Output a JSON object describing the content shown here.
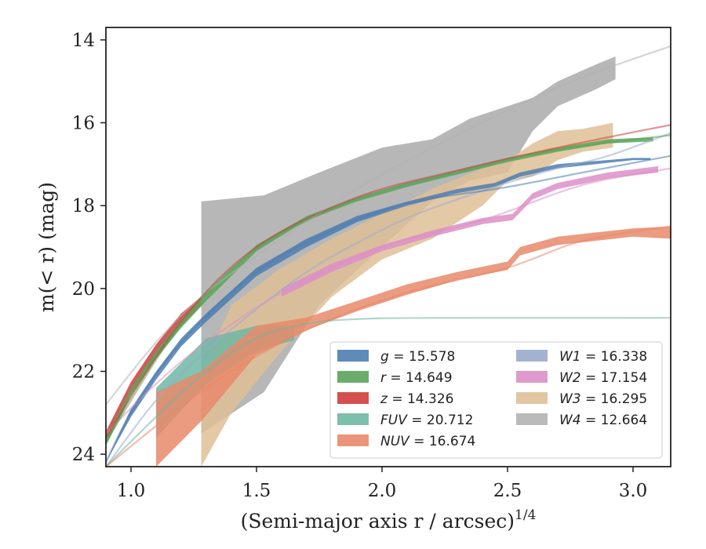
{
  "chart_data": {
    "type": "line",
    "xlabel": "(Semi-major axis r / arcsec)",
    "xlabel_sup": "1/4",
    "ylabel": "m(< r) (mag)",
    "xlim": [
      0.9,
      3.15
    ],
    "ylim": [
      24.3,
      13.7
    ],
    "y_inverted": true,
    "x_ticks": [
      1.0,
      1.5,
      2.0,
      2.5,
      3.0
    ],
    "x_tick_labels": [
      "1.0",
      "1.5",
      "2.0",
      "2.5",
      "3.0"
    ],
    "y_ticks": [
      14,
      16,
      18,
      20,
      22,
      24
    ],
    "y_tick_labels": [
      "14",
      "16",
      "18",
      "20",
      "22",
      "24"
    ],
    "grid": false,
    "legend_position": "lower-right",
    "series": [
      {
        "name": "g",
        "value": "15.578",
        "color": "#4c7eb0",
        "band": [
          [
            0.9,
            24.2,
            24.2
          ],
          [
            1.0,
            22.9,
            23.1
          ],
          [
            1.1,
            22.0,
            22.2
          ],
          [
            1.2,
            21.2,
            21.4
          ],
          [
            1.3,
            20.6,
            20.8
          ],
          [
            1.5,
            19.5,
            19.7
          ],
          [
            1.7,
            18.8,
            19.0
          ],
          [
            1.9,
            18.25,
            18.4
          ],
          [
            2.1,
            17.9,
            18.0
          ],
          [
            2.3,
            17.6,
            17.7
          ],
          [
            2.45,
            17.45,
            17.55
          ],
          [
            2.55,
            17.2,
            17.3
          ],
          [
            2.7,
            17.0,
            17.1
          ],
          [
            3.0,
            16.85,
            16.9
          ],
          [
            3.07,
            16.85,
            16.9
          ]
        ],
        "model": [
          [
            0.9,
            24.2
          ],
          [
            1.0,
            23.0
          ],
          [
            1.2,
            21.3
          ],
          [
            1.5,
            19.6
          ],
          [
            1.8,
            18.6
          ],
          [
            2.1,
            17.95
          ],
          [
            2.5,
            17.55
          ],
          [
            2.8,
            17.2
          ],
          [
            3.15,
            16.8
          ]
        ]
      },
      {
        "name": "r",
        "value": "14.649",
        "color": "#5aa45a",
        "band": [
          [
            0.9,
            23.8,
            23.6
          ],
          [
            1.0,
            22.6,
            22.4
          ],
          [
            1.1,
            21.7,
            21.5
          ],
          [
            1.2,
            20.95,
            20.75
          ],
          [
            1.3,
            20.3,
            20.1
          ],
          [
            1.5,
            19.1,
            18.95
          ],
          [
            1.7,
            18.35,
            18.25
          ],
          [
            1.9,
            17.9,
            17.8
          ],
          [
            2.1,
            17.55,
            17.45
          ],
          [
            2.3,
            17.25,
            17.15
          ],
          [
            2.5,
            16.95,
            16.85
          ],
          [
            2.7,
            16.7,
            16.6
          ],
          [
            2.9,
            16.5,
            16.4
          ],
          [
            3.08,
            16.45,
            16.35
          ]
        ],
        "model": [
          [
            0.9,
            23.7
          ],
          [
            1.2,
            20.85
          ],
          [
            1.5,
            19.05
          ],
          [
            1.9,
            17.85
          ],
          [
            2.3,
            17.2
          ],
          [
            2.7,
            16.65
          ],
          [
            3.15,
            16.3
          ]
        ]
      },
      {
        "name": "z",
        "value": "14.326",
        "color": "#d03c3c",
        "band": [
          [
            0.9,
            23.75,
            23.45
          ],
          [
            1.0,
            22.55,
            22.25
          ],
          [
            1.1,
            21.65,
            21.35
          ],
          [
            1.2,
            20.9,
            20.6
          ],
          [
            1.28,
            20.4,
            20.2
          ]
        ],
        "model": [
          [
            0.9,
            23.6
          ],
          [
            1.2,
            20.8
          ],
          [
            1.5,
            19.0
          ],
          [
            1.9,
            17.8
          ],
          [
            2.3,
            17.15
          ],
          [
            2.7,
            16.6
          ],
          [
            3.15,
            16.05
          ]
        ]
      },
      {
        "name": "FUV",
        "value": "20.712",
        "color": "#6fb7a3",
        "band": [
          [
            1.1,
            23.6,
            22.4
          ],
          [
            1.3,
            22.3,
            21.2
          ],
          [
            1.5,
            21.5,
            20.9
          ],
          [
            1.65,
            21.25,
            20.9
          ]
        ],
        "model": [
          [
            0.9,
            24.3
          ],
          [
            1.1,
            23.1
          ],
          [
            1.3,
            22.0
          ],
          [
            1.5,
            21.2
          ],
          [
            1.7,
            20.85
          ],
          [
            1.9,
            20.74
          ],
          [
            2.2,
            20.71
          ],
          [
            3.15,
            20.71
          ]
        ]
      },
      {
        "name": "NUV",
        "value": "16.674",
        "color": "#e8896a",
        "band": [
          [
            1.1,
            24.3,
            22.5
          ],
          [
            1.28,
            23.2,
            22.0
          ],
          [
            1.5,
            21.6,
            20.9
          ],
          [
            1.7,
            21.0,
            20.7
          ],
          [
            1.9,
            20.55,
            20.3
          ],
          [
            2.1,
            20.15,
            19.9
          ],
          [
            2.3,
            19.8,
            19.6
          ],
          [
            2.5,
            19.55,
            19.35
          ],
          [
            2.55,
            19.2,
            19.0
          ],
          [
            2.7,
            18.95,
            18.75
          ],
          [
            3.0,
            18.75,
            18.55
          ],
          [
            3.15,
            18.8,
            18.5
          ]
        ],
        "model": [
          [
            0.9,
            24.3
          ],
          [
            1.3,
            22.4
          ],
          [
            1.7,
            21.0
          ],
          [
            2.1,
            20.1
          ],
          [
            2.5,
            19.5
          ],
          [
            2.8,
            18.85
          ],
          [
            3.15,
            18.5
          ]
        ]
      },
      {
        "name": "W1",
        "value": "16.338",
        "color": "#9aaacd",
        "band": [],
        "model": [
          [
            0.9,
            24.3
          ],
          [
            1.1,
            22.7
          ],
          [
            1.3,
            21.5
          ],
          [
            1.5,
            20.5
          ],
          [
            1.7,
            19.6
          ],
          [
            1.9,
            18.9
          ],
          [
            2.1,
            18.3
          ],
          [
            2.3,
            17.85
          ],
          [
            2.5,
            17.45
          ],
          [
            2.7,
            17.1
          ],
          [
            2.9,
            16.8
          ],
          [
            3.15,
            16.25
          ]
        ]
      },
      {
        "name": "W2",
        "value": "17.154",
        "color": "#dc8fc8",
        "band": [
          [
            1.6,
            20.2,
            20.0
          ],
          [
            1.8,
            19.6,
            19.4
          ],
          [
            2.0,
            19.1,
            18.95
          ],
          [
            2.2,
            18.75,
            18.6
          ],
          [
            2.4,
            18.45,
            18.3
          ],
          [
            2.52,
            18.35,
            18.2
          ],
          [
            2.6,
            17.85,
            17.7
          ],
          [
            2.7,
            17.6,
            17.45
          ],
          [
            2.9,
            17.35,
            17.2
          ],
          [
            3.1,
            17.2,
            17.05
          ]
        ],
        "model": [
          [
            0.9,
            23.5
          ],
          [
            1.1,
            22.3
          ],
          [
            1.3,
            21.3
          ],
          [
            1.6,
            20.1
          ],
          [
            2.0,
            19.0
          ],
          [
            2.4,
            18.35
          ],
          [
            2.8,
            17.5
          ],
          [
            3.15,
            17.1
          ]
        ]
      },
      {
        "name": "W3",
        "value": "16.295",
        "color": "#dfc097",
        "band": [
          [
            1.28,
            24.3,
            22.0
          ],
          [
            1.4,
            23.0,
            20.4
          ],
          [
            1.6,
            21.5,
            19.5
          ],
          [
            1.8,
            20.2,
            18.8
          ],
          [
            2.0,
            19.3,
            18.2
          ],
          [
            2.2,
            18.8,
            17.6
          ],
          [
            2.4,
            18.0,
            17.1
          ],
          [
            2.5,
            17.4,
            16.9
          ],
          [
            2.6,
            17.3,
            16.5
          ],
          [
            2.7,
            16.9,
            16.2
          ],
          [
            2.8,
            16.7,
            16.15
          ],
          [
            2.92,
            16.6,
            16.0
          ]
        ],
        "model": []
      },
      {
        "name": "W4",
        "value": "12.664",
        "color": "#b3b3b3",
        "band": [
          [
            1.28,
            23.5,
            17.9
          ],
          [
            1.53,
            22.5,
            17.75
          ],
          [
            1.75,
            20.4,
            17.2
          ],
          [
            2.0,
            19.0,
            16.6
          ],
          [
            2.2,
            17.9,
            16.4
          ],
          [
            2.35,
            17.4,
            15.9
          ],
          [
            2.5,
            17.2,
            15.6
          ],
          [
            2.6,
            16.2,
            15.4
          ],
          [
            2.7,
            15.6,
            15.0
          ],
          [
            2.85,
            15.2,
            14.6
          ],
          [
            2.93,
            14.95,
            14.4
          ]
        ],
        "model": [
          [
            0.9,
            22.8
          ],
          [
            1.1,
            21.3
          ],
          [
            1.3,
            20.1
          ],
          [
            1.6,
            18.8
          ],
          [
            1.9,
            17.6
          ],
          [
            2.2,
            16.6
          ],
          [
            2.5,
            15.7
          ],
          [
            2.8,
            14.9
          ],
          [
            3.15,
            14.15
          ]
        ]
      }
    ]
  }
}
